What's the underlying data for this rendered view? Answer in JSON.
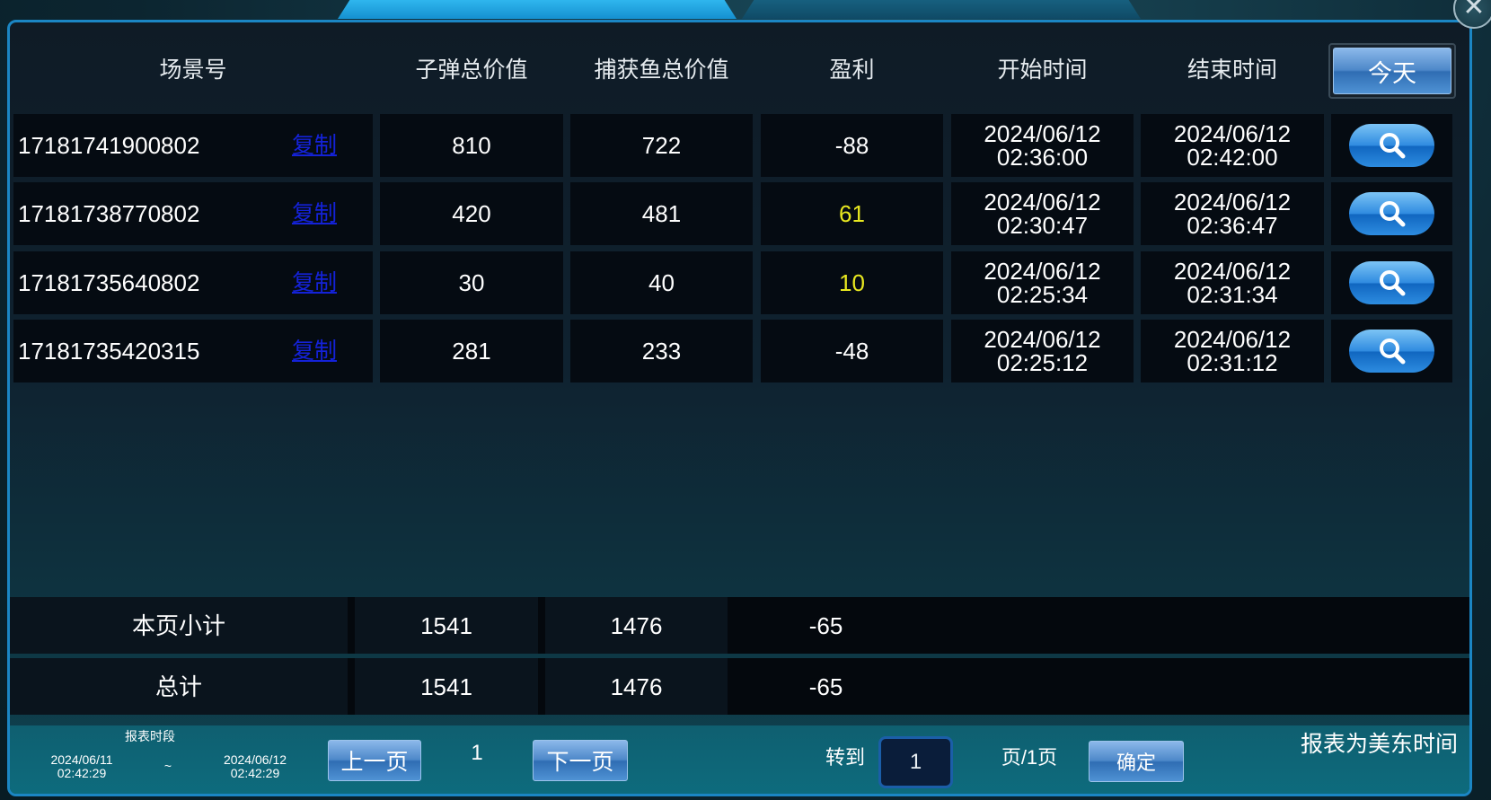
{
  "header": {
    "columns": [
      "场景号",
      "子弹总价值",
      "捕获鱼总价值",
      "盈利",
      "开始时间",
      "结束时间"
    ],
    "today_label": "今天"
  },
  "rows": [
    {
      "scene": "17181741900802",
      "copy": "复制",
      "bullet": "810",
      "catch": "722",
      "profit": "-88",
      "start_date": "2024/06/12",
      "start_time": "02:36:00",
      "end_date": "2024/06/12",
      "end_time": "02:42:00"
    },
    {
      "scene": "17181738770802",
      "copy": "复制",
      "bullet": "420",
      "catch": "481",
      "profit": "61",
      "start_date": "2024/06/12",
      "start_time": "02:30:47",
      "end_date": "2024/06/12",
      "end_time": "02:36:47"
    },
    {
      "scene": "17181735640802",
      "copy": "复制",
      "bullet": "30",
      "catch": "40",
      "profit": "10",
      "start_date": "2024/06/12",
      "start_time": "02:25:34",
      "end_date": "2024/06/12",
      "end_time": "02:31:34"
    },
    {
      "scene": "17181735420315",
      "copy": "复制",
      "bullet": "281",
      "catch": "233",
      "profit": "-48",
      "start_date": "2024/06/12",
      "start_time": "02:25:12",
      "end_date": "2024/06/12",
      "end_time": "02:31:12"
    }
  ],
  "summary": [
    {
      "label": "本页小计",
      "bullet": "1541",
      "catch": "1476",
      "profit": "-65"
    },
    {
      "label": "总计",
      "bullet": "1541",
      "catch": "1476",
      "profit": "-65"
    }
  ],
  "footer": {
    "period_label": "报表时段",
    "from_date": "2024/06/11",
    "from_time": "02:42:29",
    "separator": "~",
    "to_date": "2024/06/12",
    "to_time": "02:42:29",
    "prev": "上一页",
    "page": "1",
    "next": "下一页",
    "goto": "转到",
    "goto_value": "1",
    "page_total": "页/1页",
    "confirm": "确定",
    "timezone_note": "报表为美东时间"
  },
  "colors": {
    "positive_profit": "#e8e820",
    "copy_link": "#1422d8",
    "accent": "#1b86c4"
  },
  "icons": {
    "search": "magnifier-icon",
    "close": "x-icon"
  }
}
